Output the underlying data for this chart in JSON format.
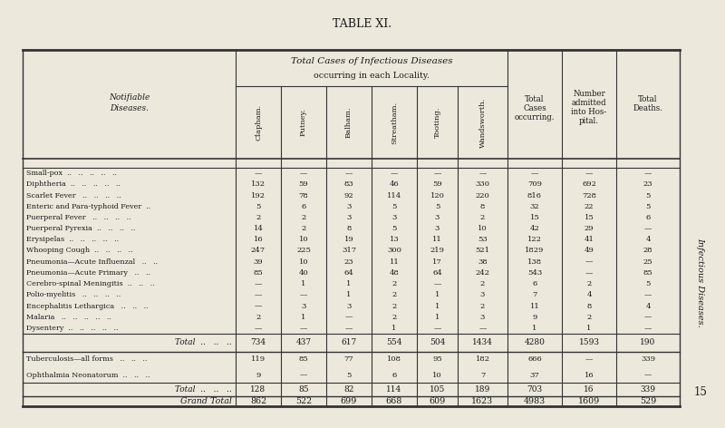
{
  "title": "TABLE XI.",
  "subtitle1": "Total Cases of Infectious Diseases",
  "subtitle2": "occurring in each Locality.",
  "locality_cols": [
    "Clapham.",
    "Putney.",
    "Balham.",
    "Streatham.",
    "Tooting.",
    "Wandsworth."
  ],
  "side_label": "Infectious Diseases.",
  "page_number": "15",
  "rows": [
    {
      "disease": "Small-pox  ..   ..   ..   ..   ..",
      "values": [
        "—",
        "—",
        "—",
        "—",
        "—",
        "—",
        "—",
        "—",
        "—"
      ]
    },
    {
      "disease": "Diphtheria  ..   ..   ..   ..   ..",
      "values": [
        "132",
        "59",
        "83",
        "46",
        "59",
        "330",
        "709",
        "692",
        "23"
      ]
    },
    {
      "disease": "Scarlet Fever   ..   ..   ..   ..",
      "values": [
        "192",
        "78",
        "92",
        "114",
        "120",
        "220",
        "816",
        "728",
        "5"
      ]
    },
    {
      "disease": "Enteric and Para-typhoid Fever  ..",
      "values": [
        "5",
        "6",
        "3",
        "5",
        "5",
        "8",
        "32",
        "22",
        "5"
      ]
    },
    {
      "disease": "Puerperal Fever   ..   ..   ..   ..",
      "values": [
        "2",
        "2",
        "3",
        "3",
        "3",
        "2",
        "15",
        "15",
        "6"
      ]
    },
    {
      "disease": "Puerperal Pyrexia  ..   ..   ..   ..",
      "values": [
        "14",
        "2",
        "8",
        "5",
        "3",
        "10",
        "42",
        "29",
        "—"
      ]
    },
    {
      "disease": "Erysipelas  ..   ..   ..   ..   ..",
      "values": [
        "16",
        "10",
        "19",
        "13",
        "11",
        "53",
        "122",
        "41",
        "4"
      ]
    },
    {
      "disease": "Whooping Cough  ..   ..   ..   ..",
      "values": [
        "247",
        "225",
        "317",
        "300",
        "219",
        "521",
        "1829",
        "49",
        "28"
      ]
    },
    {
      "disease": "Pneumonia—Acute Influenzal   ..   ..",
      "values": [
        "39",
        "10",
        "23",
        "11",
        "17",
        "38",
        "138",
        "—",
        "25"
      ]
    },
    {
      "disease": "Pneumonia—Acute Primary   ..   ..",
      "values": [
        "85",
        "40",
        "64",
        "48",
        "64",
        "242",
        "543",
        "—",
        "85"
      ]
    },
    {
      "disease": "Cerebro-spinal Meningitis  ..   ..   ..",
      "values": [
        "—",
        "1",
        "1",
        "2",
        "—",
        "2",
        "6",
        "2",
        "5"
      ]
    },
    {
      "disease": "Polio-myelitis   ..   ..   ..   ..",
      "values": [
        "—",
        "—",
        "1",
        "2",
        "1",
        "3",
        "7",
        "4",
        "—"
      ]
    },
    {
      "disease": "Encephalitis Lethargica   ..   ..   ..",
      "values": [
        "—",
        "3",
        "3",
        "2",
        "1",
        "2",
        "11",
        "8",
        "4"
      ]
    },
    {
      "disease": "Malaria   ..   ..   ..   ..   ..",
      "values": [
        "2",
        "1",
        "—",
        "2",
        "1",
        "3",
        "9",
        "2",
        "—"
      ]
    },
    {
      "disease": "Dysentery  ..   ..   ..   ..   ..",
      "values": [
        "—",
        "—",
        "—",
        "1",
        "—",
        "—",
        "1",
        "1",
        "—"
      ]
    }
  ],
  "total_row": {
    "label": "Total  ..   ..   ..",
    "values": [
      "734",
      "437",
      "617",
      "554",
      "504",
      "1434",
      "4280",
      "1593",
      "190"
    ]
  },
  "extra_rows": [
    {
      "disease": "Tuberculosis—all forms   ..   ..   ..",
      "values": [
        "119",
        "85",
        "77",
        "108",
        "95",
        "182",
        "666",
        "—",
        "339"
      ]
    },
    {
      "disease": "Ophthalmia Neonatorum  ..   ..   ..",
      "values": [
        "9",
        "—",
        "5",
        "6",
        "10",
        "7",
        "37",
        "16",
        "—"
      ]
    }
  ],
  "total2_row": {
    "label": "Total  ..   ..   ..",
    "values": [
      "128",
      "85",
      "82",
      "114",
      "105",
      "189",
      "703",
      "16",
      "339"
    ]
  },
  "grand_total_row": {
    "label": "Grand Total",
    "values": [
      "862",
      "522",
      "699",
      "668",
      "609",
      "1623",
      "4983",
      "1609",
      "529"
    ]
  },
  "bg_color": "#ede8dc",
  "text_color": "#1a1a1a",
  "line_color": "#333333",
  "title_color": "#1a1a1a"
}
